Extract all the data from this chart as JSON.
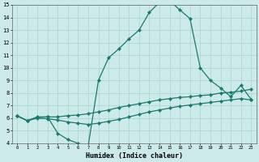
{
  "xlabel": "Humidex (Indice chaleur)",
  "bg_color": "#cceae7",
  "line_color": "#1a7a6e",
  "grid_color": "#b0d8d4",
  "xlim": [
    -0.5,
    23.5
  ],
  "ylim": [
    4,
    15
  ],
  "xticks": [
    0,
    1,
    2,
    3,
    4,
    5,
    6,
    7,
    8,
    9,
    10,
    11,
    12,
    13,
    14,
    15,
    16,
    17,
    18,
    19,
    20,
    21,
    22,
    23
  ],
  "yticks": [
    4,
    5,
    6,
    7,
    8,
    9,
    10,
    11,
    12,
    13,
    14,
    15
  ],
  "line1_x": [
    0,
    1,
    2,
    3,
    4,
    5,
    6,
    7,
    8,
    9,
    10,
    11,
    12,
    13,
    14,
    15,
    16,
    17,
    18,
    19,
    20,
    21,
    22,
    23
  ],
  "line1_y": [
    6.2,
    5.8,
    6.1,
    6.1,
    4.8,
    4.3,
    4.0,
    3.85,
    9.0,
    10.8,
    11.5,
    12.3,
    13.0,
    14.4,
    15.2,
    15.3,
    14.6,
    13.9,
    10.0,
    9.0,
    8.4,
    7.7,
    8.6,
    7.5
  ],
  "line2_x": [
    0,
    1,
    2,
    3,
    4,
    5,
    6,
    7,
    8,
    9,
    10,
    11,
    12,
    13,
    14,
    15,
    16,
    17,
    18,
    19,
    20,
    21,
    22,
    23
  ],
  "line2_y": [
    6.2,
    5.8,
    6.05,
    6.1,
    6.1,
    6.2,
    6.25,
    6.35,
    6.5,
    6.65,
    6.85,
    7.0,
    7.15,
    7.3,
    7.45,
    7.55,
    7.65,
    7.7,
    7.8,
    7.85,
    8.0,
    8.05,
    8.15,
    8.3
  ],
  "line3_x": [
    0,
    1,
    2,
    3,
    4,
    5,
    6,
    7,
    8,
    9,
    10,
    11,
    12,
    13,
    14,
    15,
    16,
    17,
    18,
    19,
    20,
    21,
    22,
    23
  ],
  "line3_y": [
    6.2,
    5.8,
    6.0,
    5.95,
    5.85,
    5.7,
    5.6,
    5.5,
    5.6,
    5.75,
    5.9,
    6.1,
    6.3,
    6.5,
    6.65,
    6.8,
    6.95,
    7.05,
    7.15,
    7.25,
    7.35,
    7.45,
    7.55,
    7.45
  ]
}
